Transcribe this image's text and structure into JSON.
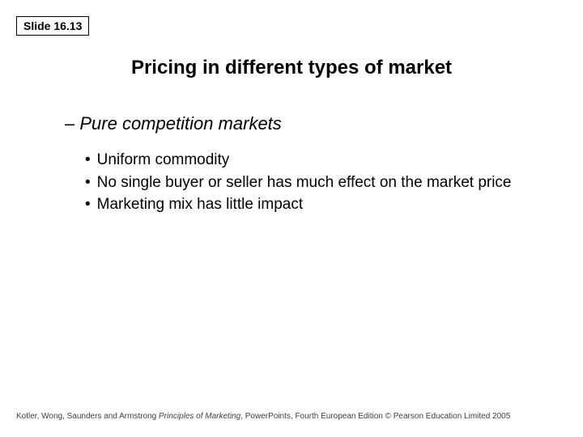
{
  "slide_label": "Slide 16.13",
  "title": "Pricing in different types of market",
  "subtitle_prefix": "– ",
  "subtitle": "Pure competition markets",
  "bullets": [
    "Uniform commodity",
    "No single buyer or seller has much effect on the market price",
    "Marketing mix has little impact"
  ],
  "footer": {
    "authors": "Kotler, Wong, Saunders and Armstrong ",
    "title_italic": "Principles of Marketing",
    "rest": ", PowerPoints, Fourth European Edition © Pearson Education Limited 2005"
  },
  "styling": {
    "background_color": "#ffffff",
    "text_color": "#000000",
    "footer_color": "#404040",
    "slide_label_border": "#000000",
    "title_fontsize": 24,
    "subtitle_fontsize": 22,
    "bullet_fontsize": 19,
    "footer_fontsize": 10
  }
}
